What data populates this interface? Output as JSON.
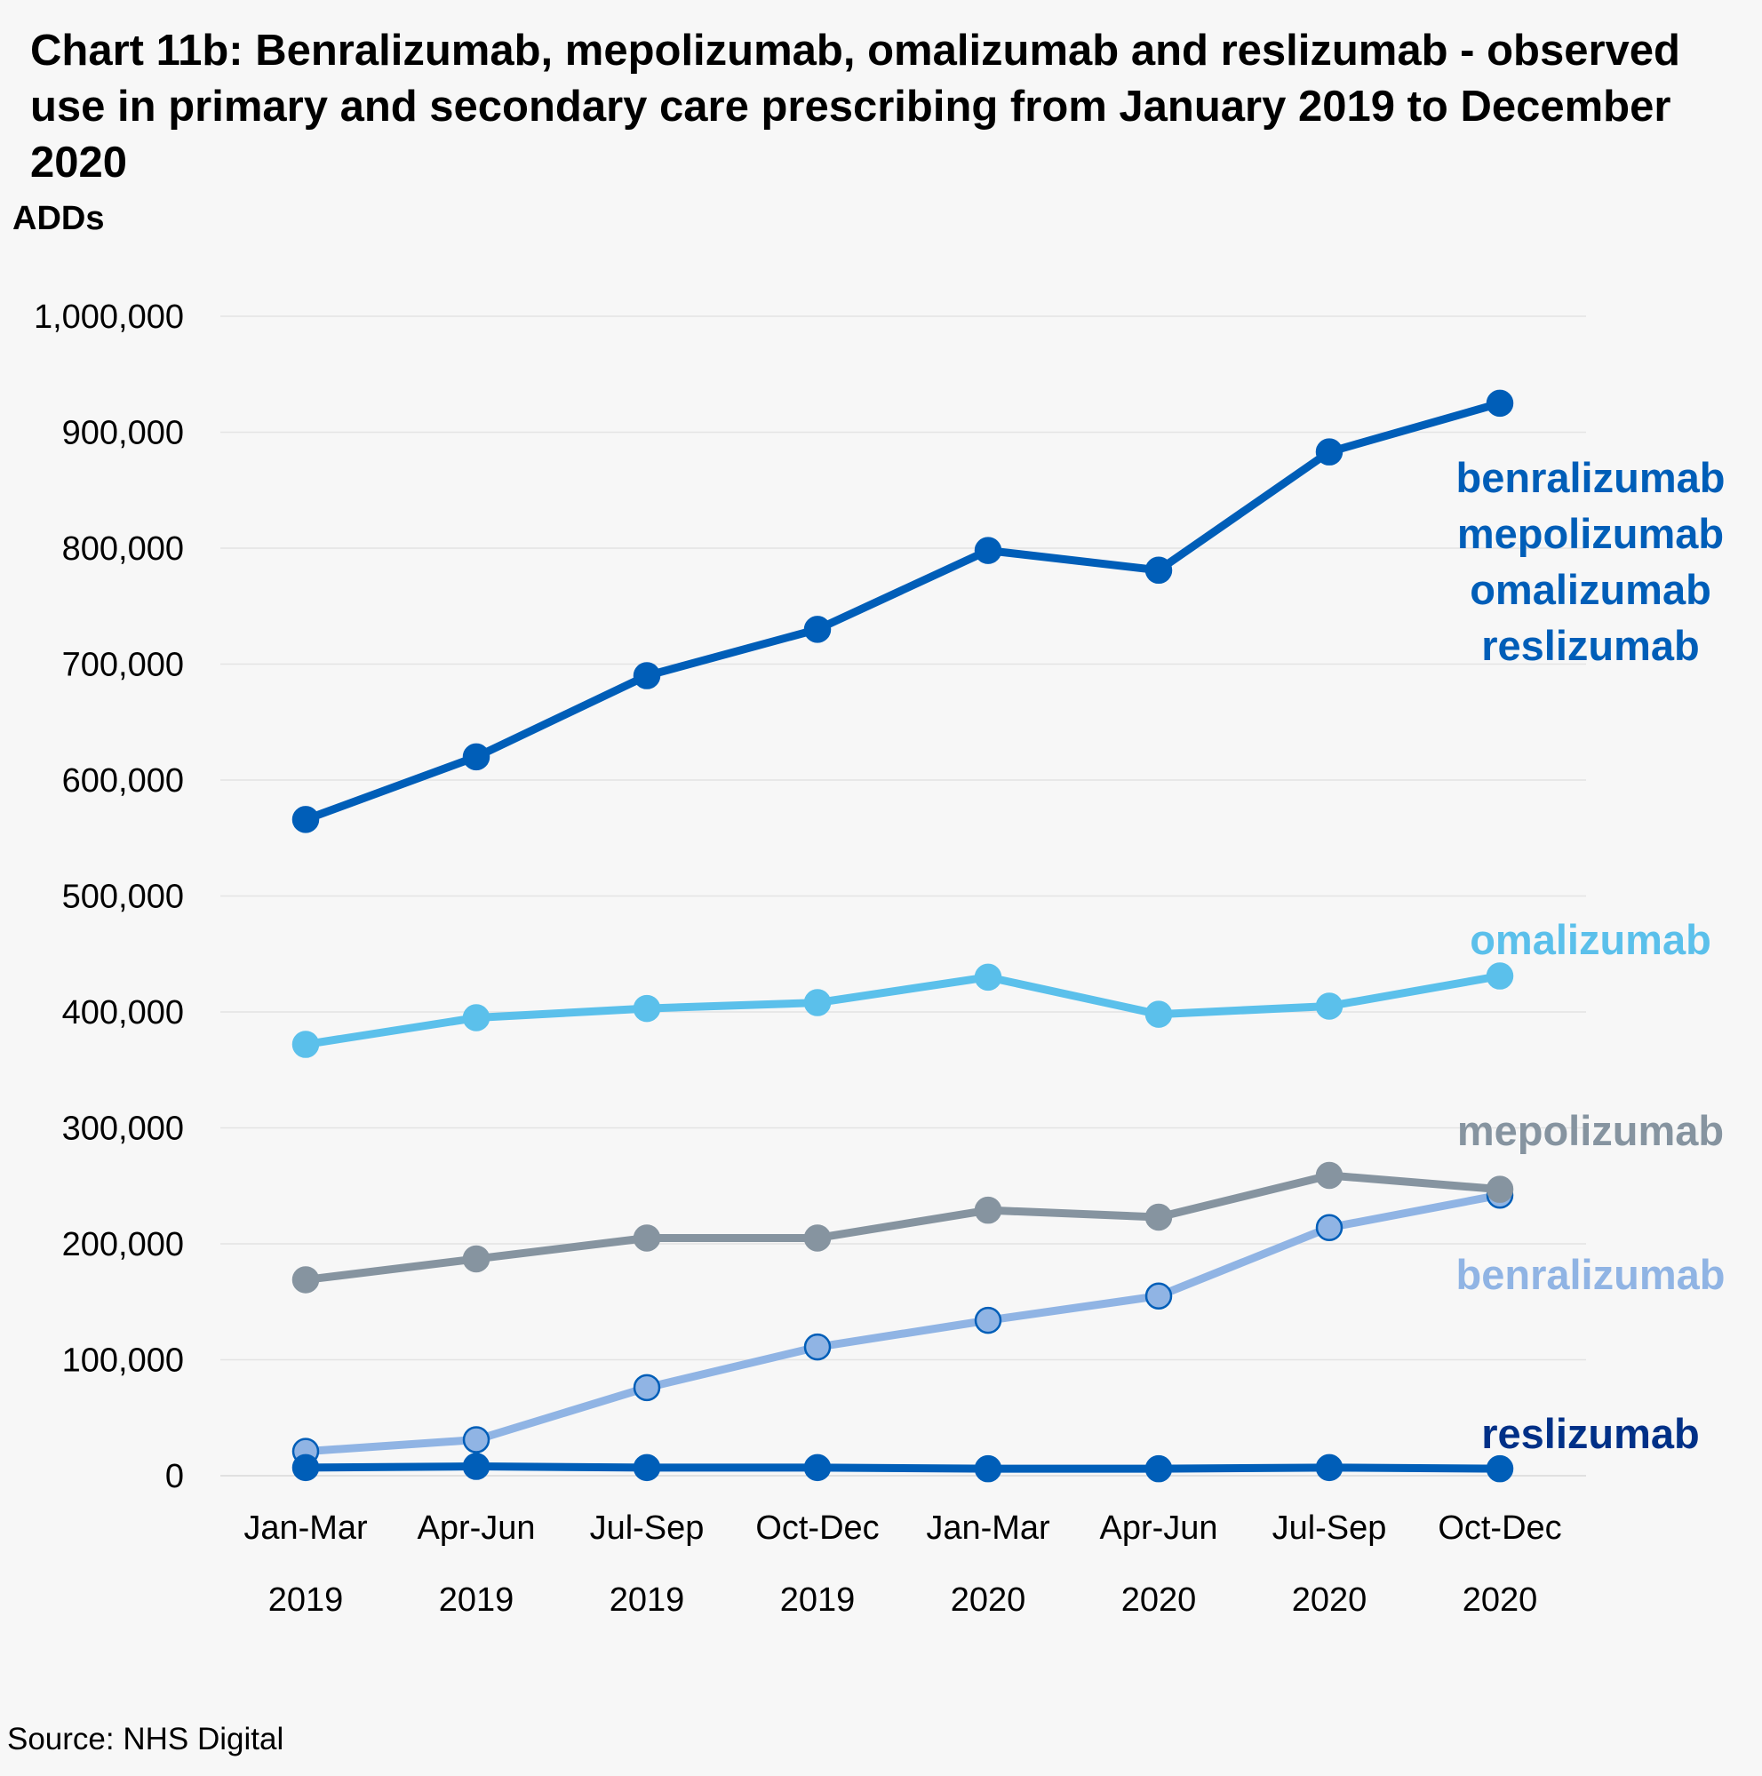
{
  "chart_data": {
    "type": "line",
    "title": "Chart 11b: Benralizumab, mepolizumab, omalizumab and reslizumab  - observed use in primary and secondary care prescribing from January 2019 to December 2020",
    "ylabel": "ADDs",
    "ylim": [
      0,
      1000000
    ],
    "y_ticks": [
      "0",
      "100,000",
      "200,000",
      "300,000",
      "400,000",
      "500,000",
      "600,000",
      "700,000",
      "800,000",
      "900,000",
      "1,000,000"
    ],
    "categories": [
      [
        "Jan-Mar",
        "2019"
      ],
      [
        "Apr-Jun",
        "2019"
      ],
      [
        "Jul-Sep",
        "2019"
      ],
      [
        "Oct-Dec",
        "2019"
      ],
      [
        "Jan-Mar",
        "2020"
      ],
      [
        "Apr-Jun",
        "2020"
      ],
      [
        "Jul-Sep",
        "2020"
      ],
      [
        "Oct-Dec",
        "2020"
      ]
    ],
    "grid": true,
    "series": [
      {
        "name": "benralizumab mepolizumab omalizumab reslizumab",
        "label_lines": [
          "benralizumab",
          "mepolizumab",
          "omalizumab",
          "reslizumab"
        ],
        "color": "#005eb8",
        "marker_fill": "#005eb8",
        "values": [
          566000,
          620000,
          690000,
          730000,
          798000,
          781000,
          883000,
          925000
        ]
      },
      {
        "name": "omalizumab",
        "label_lines": [
          "omalizumab"
        ],
        "color": "#5bc0eb",
        "marker_fill": "#5bc0eb",
        "values": [
          372000,
          395000,
          403000,
          408000,
          430000,
          398000,
          405000,
          431000
        ]
      },
      {
        "name": "mepolizumab",
        "label_lines": [
          "mepolizumab"
        ],
        "color": "#8694a0",
        "marker_fill": "#8694a0",
        "values": [
          169000,
          187000,
          205000,
          205000,
          229000,
          223000,
          259000,
          247000
        ]
      },
      {
        "name": "benralizumab",
        "label_lines": [
          "benralizumab"
        ],
        "color": "#90b4e4",
        "marker_fill": "#90b4e4",
        "marker_stroke": "#005eb8",
        "values": [
          21000,
          31000,
          76000,
          111000,
          134000,
          155000,
          214000,
          242000
        ]
      },
      {
        "name": "reslizumab",
        "label_lines": [
          "reslizumab"
        ],
        "color": "#005eb8",
        "marker_fill": "#005eb8",
        "label_color": "#003087",
        "values": [
          7000,
          8000,
          7000,
          7000,
          6000,
          6000,
          7000,
          6000
        ]
      }
    ],
    "source": "Source: NHS Digital"
  }
}
